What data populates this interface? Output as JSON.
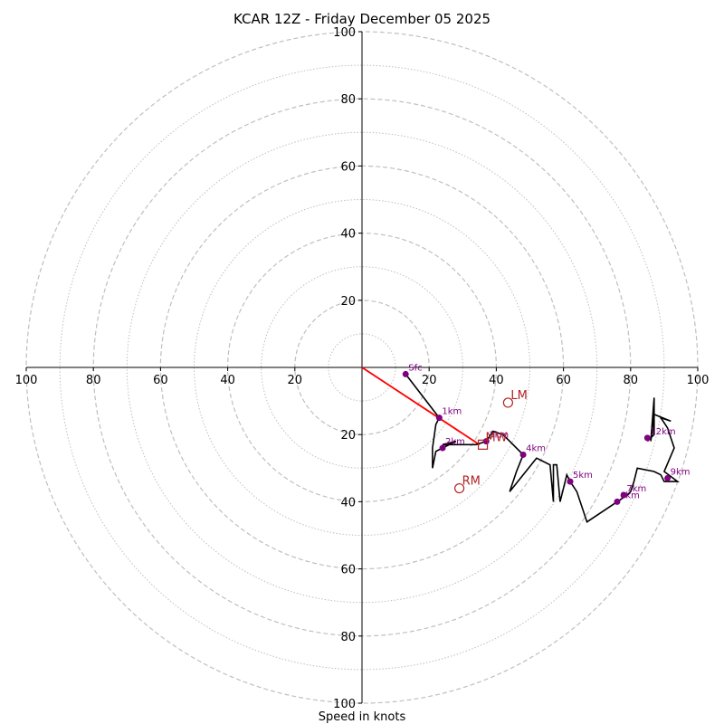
{
  "chart_data": {
    "type": "hodograph",
    "title": "KCAR 12Z - Friday December 05 2025",
    "xlabel": "Speed in knots",
    "max_speed": 100,
    "ring_major_step": 20,
    "ring_minor_step": 10,
    "tick_labels": {
      "x_left": [
        "100",
        "80",
        "60",
        "40",
        "20"
      ],
      "x_right": [
        "20",
        "40",
        "60",
        "80",
        "100"
      ],
      "y_up": [
        "20",
        "40",
        "60",
        "80",
        "100"
      ],
      "y_down": [
        "20",
        "40",
        "60",
        "80",
        "100"
      ]
    },
    "trace": [
      [
        13,
        -2
      ],
      [
        23,
        -15
      ],
      [
        22,
        -17
      ],
      [
        21,
        -24
      ],
      [
        21,
        -30
      ],
      [
        22,
        -25
      ],
      [
        24,
        -24
      ],
      [
        28,
        -22
      ],
      [
        24,
        -23
      ],
      [
        31,
        -23
      ],
      [
        34,
        -23
      ],
      [
        37,
        -22
      ],
      [
        39,
        -19
      ],
      [
        42,
        -20
      ],
      [
        44,
        -22
      ],
      [
        48,
        -26
      ],
      [
        46,
        -31
      ],
      [
        44,
        -37
      ],
      [
        52,
        -27
      ],
      [
        56,
        -29
      ],
      [
        57,
        -40
      ],
      [
        57,
        -29
      ],
      [
        58,
        -29
      ],
      [
        59,
        -40
      ],
      [
        61,
        -32
      ],
      [
        62,
        -34
      ],
      [
        64,
        -37
      ],
      [
        67,
        -46
      ],
      [
        76,
        -40
      ],
      [
        79,
        -38
      ],
      [
        80,
        -37
      ],
      [
        81,
        -34
      ],
      [
        82,
        -30
      ],
      [
        87,
        -31
      ],
      [
        89,
        -32
      ],
      [
        90,
        -34
      ],
      [
        94,
        -34
      ],
      [
        90,
        -31
      ],
      [
        93,
        -24
      ],
      [
        91,
        -18
      ],
      [
        89,
        -15
      ],
      [
        92,
        -16
      ],
      [
        87,
        -14
      ],
      [
        86,
        -22
      ],
      [
        87,
        -9
      ],
      [
        87,
        -20
      ],
      [
        85,
        -22
      ]
    ],
    "height_markers": [
      {
        "label": "Sfc",
        "u": 13,
        "v": -2
      },
      {
        "label": "1km",
        "u": 23,
        "v": -15
      },
      {
        "label": "2km",
        "u": 24,
        "v": -24
      },
      {
        "label": "3km",
        "u": 37,
        "v": -22
      },
      {
        "label": "4km",
        "u": 48,
        "v": -26
      },
      {
        "label": "5km",
        "u": 62,
        "v": -34
      },
      {
        "label": "6km",
        "u": 76,
        "v": -40
      },
      {
        "label": "7km",
        "u": 78,
        "v": -38
      },
      {
        "label": "9km",
        "u": 91,
        "v": -33
      },
      {
        "label": "12km",
        "u": 85,
        "v": -21
      }
    ],
    "motion_markers": [
      {
        "label": "LM",
        "u": 43.5,
        "v": -10.5,
        "shape": "circle"
      },
      {
        "label": "RM",
        "u": 29,
        "v": -36,
        "shape": "circle"
      },
      {
        "label": "MW",
        "u": 36,
        "v": -23,
        "shape": "square"
      }
    ],
    "shear_vector": {
      "from": [
        0,
        0
      ],
      "to": [
        35,
        -23
      ]
    },
    "colors": {
      "trace": "#000000",
      "markers": "#800080",
      "motion": "#b22222",
      "shear": "#ff0000",
      "rings": "#bfbfbf"
    }
  }
}
